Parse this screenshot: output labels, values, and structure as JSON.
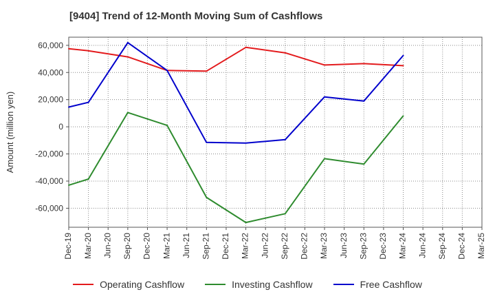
{
  "chart_data": {
    "type": "line",
    "title": "[9404]  Trend of 12-Month Moving Sum of Cashflows",
    "ylabel": "Amount (million yen)",
    "xlabel": "",
    "ylim": [
      -74000,
      66000
    ],
    "yticks": [
      60000,
      40000,
      20000,
      0,
      -20000,
      -40000,
      -60000
    ],
    "ytick_labels": [
      "60,000",
      "40,000",
      "20,000",
      "0",
      "-20,000",
      "-40,000",
      "-60,000"
    ],
    "categories": [
      "Dec-19",
      "Mar-20",
      "Jun-20",
      "Sep-20",
      "Dec-20",
      "Mar-21",
      "Jun-21",
      "Sep-21",
      "Dec-21",
      "Mar-22",
      "Jun-22",
      "Sep-22",
      "Dec-22",
      "Mar-23",
      "Jun-23",
      "Sep-23",
      "Dec-23",
      "Mar-24",
      "Jun-24",
      "Sep-24",
      "Dec-24",
      "Mar-25"
    ],
    "grid": true,
    "legend_position": "bottom",
    "series": [
      {
        "name": "Operating Cashflow",
        "color": "#e31a1c",
        "values": [
          57500,
          56000,
          null,
          51500,
          null,
          41500,
          null,
          41000,
          null,
          58500,
          null,
          54500,
          null,
          45500,
          null,
          46500,
          null,
          45000,
          null,
          null,
          null,
          null
        ]
      },
      {
        "name": "Investing Cashflow",
        "color": "#2e8b2e",
        "values": [
          -43000,
          -38500,
          null,
          10500,
          null,
          1000,
          null,
          -52000,
          null,
          -70500,
          null,
          -64000,
          null,
          -23500,
          null,
          -27500,
          null,
          8000,
          null,
          null,
          null,
          null
        ]
      },
      {
        "name": "Free Cashflow",
        "color": "#0000cc",
        "values": [
          14500,
          18000,
          null,
          62000,
          null,
          41500,
          null,
          -11500,
          null,
          -12000,
          null,
          -9500,
          null,
          22000,
          null,
          19000,
          null,
          52500,
          null,
          null,
          null,
          null
        ]
      }
    ]
  }
}
